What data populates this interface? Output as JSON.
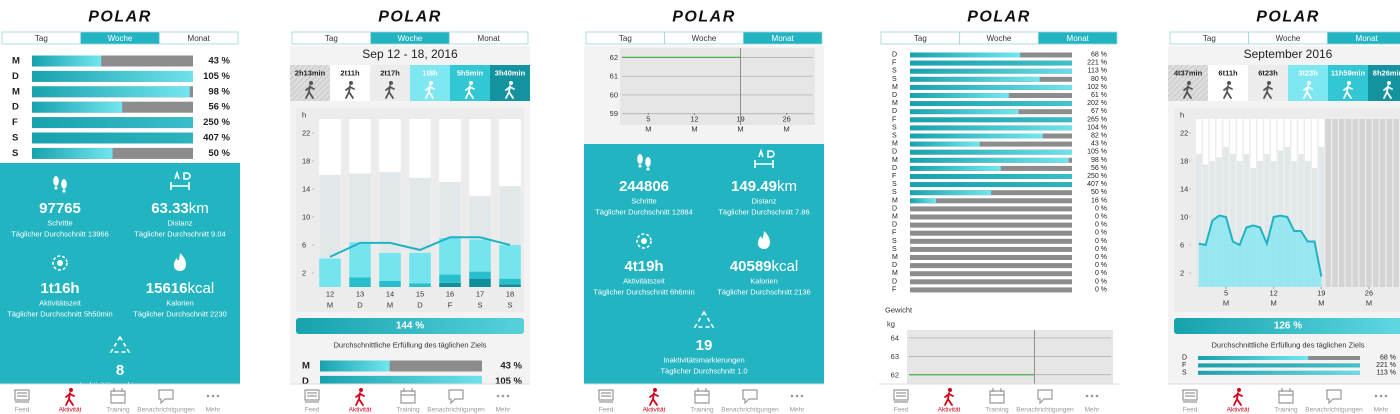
{
  "app": {
    "logo": "POLAR",
    "tabs": [
      "Tag",
      "Woche",
      "Monat"
    ],
    "nav": [
      "Feed",
      "Aktivität",
      "Training",
      "Benachrichtigungen",
      "Mehr"
    ],
    "level_colors": [
      "#d9d9d9",
      "#ffffff",
      "#ececec",
      "#7fe7f1",
      "#33c6d3",
      "#14939f"
    ]
  },
  "screens": [
    {
      "active_tab": 1,
      "goal_rows": {
        "days": [
          "M",
          "D",
          "M",
          "D",
          "F",
          "S",
          "S"
        ],
        "values": [
          43,
          105,
          98,
          56,
          250,
          407,
          50
        ],
        "value_labels": [
          "43 %",
          "105 %",
          "98 %",
          "56 %",
          "250 %",
          "407 %",
          "50 %"
        ]
      },
      "stats": [
        {
          "value": 97765,
          "label": "Schritte",
          "average": "Täglicher Durchschnitt 13966"
        },
        {
          "value": 63.33,
          "unit": "km",
          "label": "Distanz",
          "average": "Täglicher Durchschnitt 9.04"
        },
        {
          "value": "1t16h",
          "label": "Aktivitätszeit",
          "average": "Täglicher Durchschnitt 5h50min"
        },
        {
          "value": 15616,
          "unit": "kcal",
          "label": "Kalorien",
          "average": "Täglicher Durchschnitt 2230"
        },
        {
          "value": 8,
          "label": "Inaktivitätsmarkierungen"
        }
      ]
    },
    {
      "active_tab": 1,
      "period": "Sep 12 - 18, 2016",
      "levels": [
        "2h13min",
        "2t11h",
        "2t17h",
        "1t8h",
        "5h5min",
        "3h40min"
      ],
      "chart_data": {
        "type": "bar",
        "stacked": true,
        "y_label": "h",
        "categories": [
          "12",
          "13",
          "14",
          "15",
          "16",
          "17",
          "18"
        ],
        "sublabels": [
          "M",
          "D",
          "M",
          "D",
          "F",
          "S",
          "S"
        ],
        "ylim": [
          0,
          24
        ],
        "yticks": [
          2,
          6,
          10,
          14,
          18,
          22
        ],
        "series": [
          {
            "color": "#108e9b",
            "values": [
              0,
              0,
              0,
              0,
              0.6,
              1.2,
              0.4
            ]
          },
          {
            "color": "#27bfcc",
            "values": [
              0,
              1.4,
              0.9,
              0.5,
              1.2,
              1.0,
              0.8
            ]
          },
          {
            "color": "#74e5ef",
            "values": [
              4.1,
              5.0,
              4.0,
              4.4,
              5.2,
              4.6,
              4.8
            ]
          },
          {
            "color": "#e2e8e9",
            "values": [
              11.9,
              9.8,
              11.5,
              10.7,
              8.0,
              6.2,
              8.4
            ]
          }
        ],
        "line": {
          "color": "#1fb3c3",
          "values": [
            4.3,
            6.3,
            6.3,
            5.3,
            7.1,
            7.1,
            6.0
          ]
        }
      },
      "goal": {
        "value": 144,
        "value_label": "144 %"
      },
      "goal_caption": "Durchschnittliche Erfüllung des täglichen Ziels",
      "goal_rows": {
        "days": [
          "M",
          "D"
        ],
        "values": [
          43,
          105
        ],
        "value_labels": [
          "43 %",
          "105 %"
        ]
      }
    },
    {
      "active_tab": 2,
      "weight_chart": {
        "type": "line",
        "x": [
          1,
          19
        ],
        "xlim": [
          1,
          30
        ],
        "xticks": [
          5,
          12,
          19,
          26
        ],
        "xtick_days": [
          "M",
          "M",
          "M",
          "M"
        ],
        "ylim": [
          58.4,
          62.5
        ],
        "yticks": [
          59,
          60,
          61,
          62
        ],
        "series": [
          {
            "color": "#4caf50",
            "values": [
              62,
              62
            ]
          }
        ]
      },
      "stats": [
        {
          "value": 244806,
          "label": "Schritte",
          "average": "Täglicher Durchschnitt 12884"
        },
        {
          "value": 149.49,
          "unit": "km",
          "label": "Distanz",
          "average": "Täglicher Durchschnitt 7.86"
        },
        {
          "value": "4t19h",
          "label": "Aktivitätszeit",
          "average": "Täglicher Durchschnitt 6h6min"
        },
        {
          "value": 40589,
          "unit": "kcal",
          "label": "Kalorien",
          "average": "Täglicher Durchschnitt 2136"
        },
        {
          "value": 19,
          "label": "Inaktivitätsmarkierungen",
          "average": "Täglicher Durchschnitt 1.0"
        }
      ]
    },
    {
      "active_tab": 2,
      "goal_rows": {
        "days": [
          "D",
          "F",
          "S",
          "S",
          "M",
          "D",
          "M",
          "D",
          "F",
          "S",
          "S",
          "M",
          "D",
          "M",
          "D",
          "F",
          "S",
          "S",
          "M",
          "D",
          "M",
          "D",
          "F",
          "S",
          "S",
          "M",
          "D",
          "M",
          "D",
          "F"
        ],
        "values": [
          68,
          221,
          113,
          80,
          102,
          61,
          202,
          67,
          265,
          104,
          82,
          43,
          105,
          98,
          56,
          250,
          407,
          50,
          16,
          0,
          0,
          0,
          0,
          0,
          0,
          0,
          0,
          0,
          0,
          0
        ],
        "value_labels": [
          "68 %",
          "221 %",
          "113 %",
          "80 %",
          "102 %",
          "61 %",
          "202 %",
          "67 %",
          "265 %",
          "104 %",
          "82 %",
          "43 %",
          "105 %",
          "98 %",
          "56 %",
          "250 %",
          "407 %",
          "50 %",
          "16 %",
          "0 %",
          "0 %",
          "0 %",
          "0 %",
          "0 %",
          "0 %",
          "0 %",
          "0 %",
          "0 %",
          "0 %",
          "0 %"
        ]
      },
      "weight_title": "Gewicht",
      "weight_chart": {
        "type": "line",
        "y_label": "kg",
        "x": [
          1,
          19
        ],
        "xlim": [
          1,
          30
        ],
        "ylim": [
          61.5,
          64.43
        ],
        "yticks": [
          62,
          63,
          64
        ],
        "series": [
          {
            "color": "#4caf50",
            "values": [
              62,
              62
            ]
          }
        ]
      }
    },
    {
      "active_tab": 2,
      "period": "September 2016",
      "levels": [
        "4t37min",
        "6t11h",
        "6t23h",
        "3t23h",
        "11h59min",
        "8h26min"
      ],
      "chart_data": {
        "type": "bar",
        "stacked": true,
        "y_label": "h",
        "x": [
          1,
          2,
          3,
          4,
          5,
          6,
          7,
          8,
          9,
          10,
          11,
          12,
          13,
          14,
          15,
          16,
          17,
          18,
          19,
          20,
          21,
          22,
          23,
          24,
          25,
          26,
          27,
          28,
          29,
          30
        ],
        "xlim": [
          0,
          31
        ],
        "xticks": [
          5,
          12,
          19,
          26
        ],
        "xtick_days": [
          "M",
          "M",
          "M",
          "M"
        ],
        "ylim": [
          0,
          24
        ],
        "yticks": [
          2,
          6,
          10,
          14,
          18,
          22
        ],
        "series": [
          {
            "color": "#e2e8e9",
            "values": [
              19,
              17.5,
              18,
              18.5,
              20,
              19,
              18,
              19,
              17,
              18,
              19,
              18,
              19.5,
              20,
              18,
              19,
              18,
              17,
              20,
              null,
              null,
              null,
              null,
              null,
              null,
              null,
              null,
              null,
              null,
              null
            ]
          }
        ],
        "line": {
          "color": "#1fb3c3",
          "fill": "#7fe7f1",
          "values": [
            6.2,
            6,
            9.5,
            10.2,
            10,
            6.5,
            6,
            8.5,
            8.8,
            8.5,
            6.2,
            10,
            10.2,
            10,
            8,
            8,
            6.5,
            6.5,
            1.5,
            null,
            null,
            null,
            null,
            null,
            null,
            null,
            null,
            null,
            null,
            null
          ]
        }
      },
      "goal": {
        "value": 126,
        "value_label": "126 %"
      },
      "goal_caption": "Durchschnittliche Erfüllung des täglichen Ziels",
      "goal_rows": {
        "days": [
          "D",
          "F",
          "S"
        ],
        "values": [
          68,
          221,
          113
        ],
        "value_labels": [
          "68 %",
          "221 %",
          "113 %"
        ]
      }
    }
  ]
}
